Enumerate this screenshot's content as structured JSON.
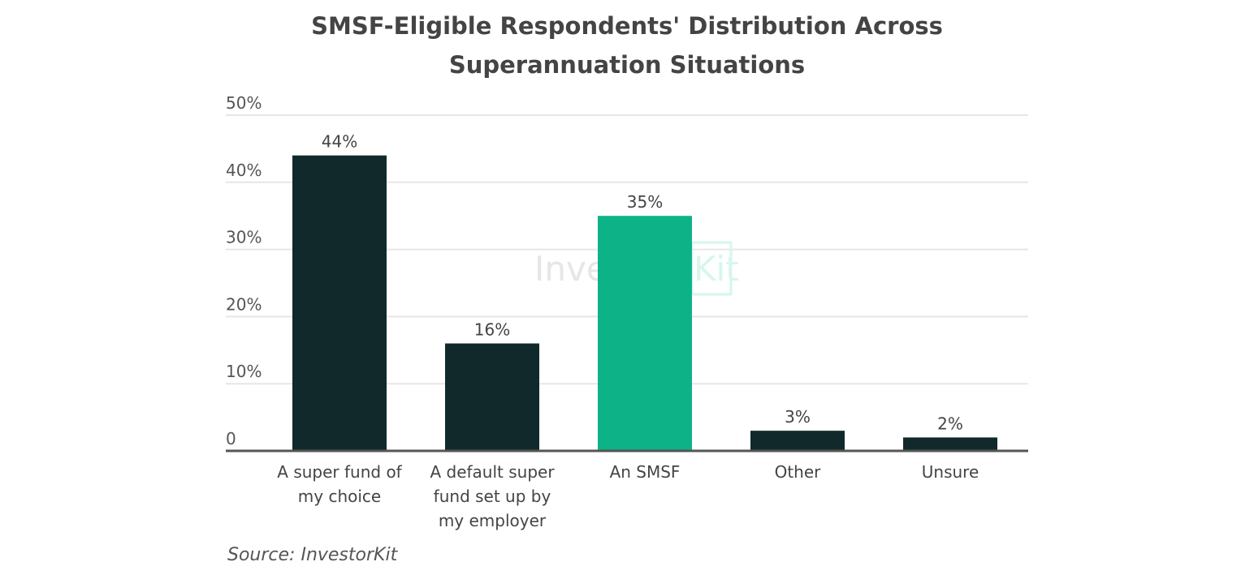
{
  "chart_data": {
    "type": "bar",
    "title_lines": [
      "SMSF-Eligible Respondents' Distribution Across",
      "Superannuation Situations"
    ],
    "categories": [
      [
        "A super fund of",
        "my choice"
      ],
      [
        "A default super",
        "fund set up by",
        "my employer"
      ],
      [
        "An SMSF"
      ],
      [
        "Other"
      ],
      [
        "Unsure"
      ]
    ],
    "values": [
      44,
      16,
      35,
      3,
      2
    ],
    "data_labels": [
      "44%",
      "16%",
      "35%",
      "3%",
      "2%"
    ],
    "colors": [
      "#11292a",
      "#11292a",
      "#0db387",
      "#11292a",
      "#11292a"
    ],
    "ylim": [
      0,
      50
    ],
    "yticks": [
      0,
      10,
      20,
      30,
      40,
      50
    ],
    "ytick_labels": [
      "0",
      "10%",
      "20%",
      "30%",
      "40%",
      "50%"
    ],
    "grid": true,
    "xlabel": "",
    "ylabel": ""
  },
  "source": "Source: InvestorKit",
  "watermark": {
    "text1": "Investor",
    "text2": "Kit"
  }
}
